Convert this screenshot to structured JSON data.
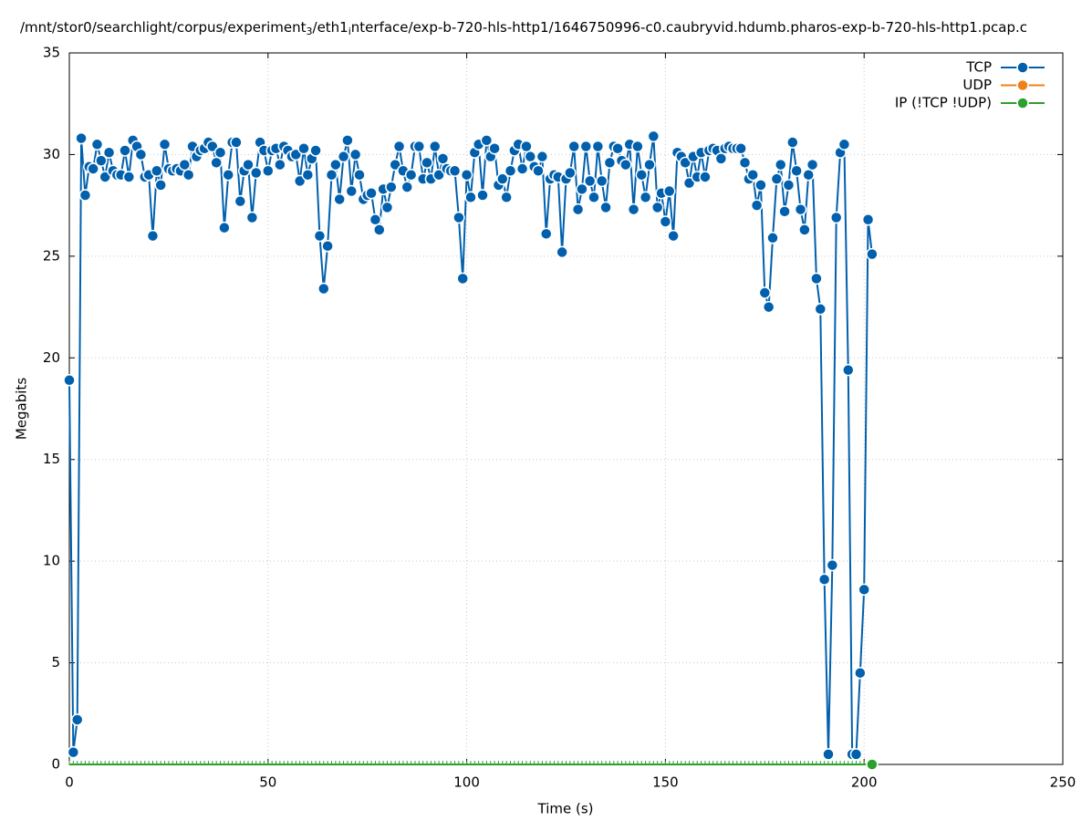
{
  "chart_data": {
    "type": "line",
    "title": [
      "/mnt/stor0/searchlight/corpus/experiment",
      "3",
      "/eth1",
      "i",
      "nterface/exp-b-720-hls-http1/1646750996-c0.caubryvid.hdumb.pharos-exp-b-720-hls-http1.pcap.c"
    ],
    "xlabel": "Time (s)",
    "ylabel": "Megabits",
    "xlim": [
      0,
      250
    ],
    "xticks": [
      0,
      50,
      100,
      150,
      200,
      250
    ],
    "ylim": [
      0,
      35
    ],
    "yticks": [
      0,
      5,
      10,
      15,
      20,
      25,
      30,
      35
    ],
    "grid": true,
    "legend": "top-right",
    "x": [
      0,
      1,
      2,
      3,
      4,
      5,
      6,
      7,
      8,
      9,
      10,
      11,
      12,
      13,
      14,
      15,
      16,
      17,
      18,
      19,
      20,
      21,
      22,
      23,
      24,
      25,
      26,
      27,
      28,
      29,
      30,
      31,
      32,
      33,
      34,
      35,
      36,
      37,
      38,
      39,
      40,
      41,
      42,
      43,
      44,
      45,
      46,
      47,
      48,
      49,
      50,
      51,
      52,
      53,
      54,
      55,
      56,
      57,
      58,
      59,
      60,
      61,
      62,
      63,
      64,
      65,
      66,
      67,
      68,
      69,
      70,
      71,
      72,
      73,
      74,
      75,
      76,
      77,
      78,
      79,
      80,
      81,
      82,
      83,
      84,
      85,
      86,
      87,
      88,
      89,
      90,
      91,
      92,
      93,
      94,
      95,
      96,
      97,
      98,
      99,
      100,
      101,
      102,
      103,
      104,
      105,
      106,
      107,
      108,
      109,
      110,
      111,
      112,
      113,
      114,
      115,
      116,
      117,
      118,
      119,
      120,
      121,
      122,
      123,
      124,
      125,
      126,
      127,
      128,
      129,
      130,
      131,
      132,
      133,
      134,
      135,
      136,
      137,
      138,
      139,
      140,
      141,
      142,
      143,
      144,
      145,
      146,
      147,
      148,
      149,
      150,
      151,
      152,
      153,
      154,
      155,
      156,
      157,
      158,
      159,
      160,
      161,
      162,
      163,
      164,
      165,
      166,
      167,
      168,
      169,
      170,
      171,
      172,
      173,
      174,
      175,
      176,
      177,
      178,
      179,
      180,
      181,
      182,
      183,
      184,
      185,
      186,
      187,
      188,
      189,
      190,
      191,
      192,
      193,
      194,
      195,
      196,
      197,
      198,
      199,
      200,
      201,
      202
    ],
    "series": [
      {
        "name": "TCP",
        "color": "#0060ad",
        "values": [
          18.9,
          0.6,
          2.2,
          30.8,
          28.0,
          29.4,
          29.3,
          30.5,
          29.7,
          28.9,
          30.1,
          29.2,
          29.0,
          29.0,
          30.2,
          28.9,
          30.7,
          30.4,
          30.0,
          28.9,
          29.0,
          26.0,
          29.2,
          28.5,
          30.5,
          29.3,
          29.2,
          29.3,
          29.2,
          29.5,
          29.0,
          30.4,
          29.9,
          30.2,
          30.3,
          30.6,
          30.4,
          29.6,
          30.1,
          26.4,
          29.0,
          30.6,
          30.6,
          27.7,
          29.2,
          29.5,
          26.9,
          29.1,
          30.6,
          30.2,
          29.2,
          30.2,
          30.3,
          29.5,
          30.4,
          30.2,
          29.9,
          30.0,
          28.7,
          30.3,
          29.0,
          29.8,
          30.2,
          26.0,
          23.4,
          25.5,
          29.0,
          29.5,
          27.8,
          29.9,
          30.7,
          28.2,
          30.0,
          29.0,
          27.8,
          28.0,
          28.1,
          26.8,
          26.3,
          28.3,
          27.4,
          28.4,
          29.5,
          30.4,
          29.2,
          28.4,
          29.0,
          30.4,
          30.4,
          28.8,
          29.6,
          28.8,
          30.4,
          29.0,
          29.8,
          29.3,
          29.2,
          29.2,
          26.9,
          23.9,
          29.0,
          27.9,
          30.1,
          30.5,
          28.0,
          30.7,
          29.9,
          30.3,
          28.5,
          28.8,
          27.9,
          29.2,
          30.2,
          30.5,
          29.3,
          30.4,
          29.9,
          29.4,
          29.2,
          29.9,
          26.1,
          28.8,
          29.0,
          28.9,
          25.2,
          28.8,
          29.1,
          30.4,
          27.3,
          28.3,
          30.4,
          28.7,
          27.9,
          30.4,
          28.7,
          27.4,
          29.6,
          30.4,
          30.3,
          29.7,
          29.5,
          30.5,
          27.3,
          30.4,
          29.0,
          27.9,
          29.5,
          30.9,
          27.4,
          28.1,
          26.7,
          28.2,
          26.0,
          30.1,
          29.9,
          29.6,
          28.6,
          29.9,
          28.9,
          30.1,
          28.9,
          30.2,
          30.3,
          30.2,
          29.8,
          30.3,
          30.4,
          30.3,
          30.3,
          30.3,
          29.6,
          28.8,
          29.0,
          27.5,
          28.5,
          23.2,
          22.5,
          25.9,
          28.8,
          29.5,
          27.2,
          28.5,
          30.6,
          29.2,
          27.3,
          26.3,
          29.0,
          29.5,
          23.9,
          22.4,
          9.1,
          0.5,
          9.8,
          26.9,
          30.1,
          30.5,
          19.4,
          0.5,
          0.5,
          4.5,
          8.6,
          26.8,
          25.1
        ]
      },
      {
        "name": "UDP",
        "color": "#f0801a",
        "x": [],
        "values": []
      },
      {
        "name": "IP (!TCP  !UDP)",
        "color": "#2ca02c",
        "values": [
          0,
          0,
          0,
          0,
          0,
          0,
          0,
          0,
          0,
          0,
          0,
          0,
          0,
          0,
          0,
          0,
          0,
          0,
          0,
          0,
          0,
          0,
          0,
          0,
          0,
          0,
          0,
          0,
          0,
          0,
          0,
          0,
          0,
          0,
          0,
          0,
          0,
          0,
          0,
          0,
          0,
          0,
          0,
          0,
          0,
          0,
          0,
          0,
          0,
          0,
          0,
          0,
          0,
          0,
          0,
          0,
          0,
          0,
          0,
          0,
          0,
          0,
          0,
          0,
          0,
          0,
          0,
          0,
          0,
          0,
          0,
          0,
          0,
          0,
          0,
          0,
          0,
          0,
          0,
          0,
          0,
          0,
          0,
          0,
          0,
          0,
          0,
          0,
          0,
          0,
          0,
          0,
          0,
          0,
          0,
          0,
          0,
          0,
          0,
          0,
          0,
          0,
          0,
          0,
          0,
          0,
          0,
          0,
          0,
          0,
          0,
          0,
          0,
          0,
          0,
          0,
          0,
          0,
          0,
          0,
          0,
          0,
          0,
          0,
          0,
          0,
          0,
          0,
          0,
          0,
          0,
          0,
          0,
          0,
          0,
          0,
          0,
          0,
          0,
          0,
          0,
          0,
          0,
          0,
          0,
          0,
          0,
          0,
          0,
          0,
          0,
          0,
          0,
          0,
          0,
          0,
          0,
          0,
          0,
          0,
          0,
          0,
          0,
          0,
          0,
          0,
          0,
          0,
          0,
          0,
          0,
          0,
          0,
          0,
          0,
          0,
          0,
          0,
          0,
          0,
          0,
          0,
          0,
          0,
          0,
          0,
          0,
          0,
          0,
          0,
          0,
          0,
          0,
          0,
          0,
          0,
          0,
          0,
          0,
          0,
          0,
          0,
          0
        ]
      }
    ]
  }
}
